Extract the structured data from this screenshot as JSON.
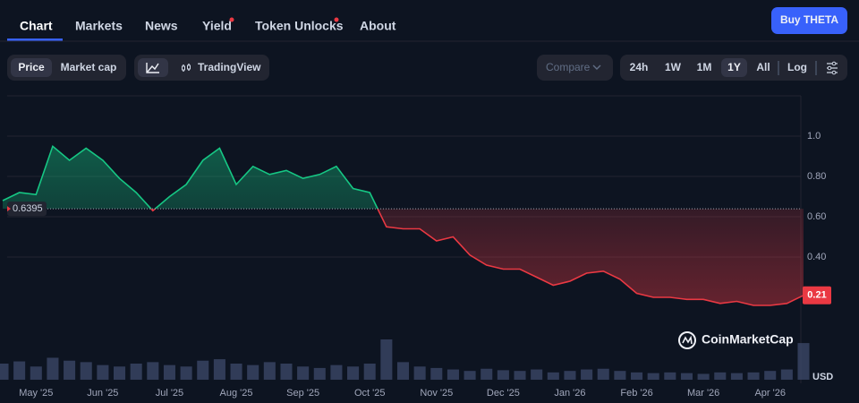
{
  "tabs": [
    "Chart",
    "Markets",
    "News",
    "Yield",
    "Token Unlocks",
    "About"
  ],
  "buy_button": "Buy THETA",
  "price_toggle": [
    "Price",
    "Market cap"
  ],
  "chart_tool": "TradingView",
  "compare": "Compare",
  "ranges": [
    "24h",
    "1W",
    "1M",
    "1Y",
    "All"
  ],
  "log": "Log",
  "watermark": "CoinMarketCap",
  "currency": "USD",
  "chart_data": {
    "type": "line",
    "categories": [
      null,
      null,
      "May '25",
      null,
      null,
      null,
      "Jun '25",
      null,
      null,
      null,
      "Jul '25",
      null,
      null,
      null,
      "Aug '25",
      null,
      null,
      null,
      "Sep '25",
      null,
      null,
      null,
      "Oct '25",
      null,
      null,
      null,
      "Nov '25",
      null,
      null,
      null,
      "Dec '25",
      null,
      null,
      null,
      "Jan '26",
      null,
      null,
      null,
      "Feb '26",
      null,
      null,
      null,
      "Mar '26",
      null,
      null,
      null,
      "Apr '26",
      null,
      null
    ],
    "series": [
      {
        "values": [
          0.68,
          0.72,
          0.71,
          0.95,
          0.88,
          0.94,
          0.88,
          0.79,
          0.72,
          0.63,
          0.7,
          0.76,
          0.88,
          0.94,
          0.76,
          0.85,
          0.81,
          0.83,
          0.79,
          0.81,
          0.85,
          0.74,
          0.72,
          0.55,
          0.54,
          0.54,
          0.48,
          0.5,
          0.41,
          0.36,
          0.34,
          0.34,
          0.3,
          0.26,
          0.28,
          0.32,
          0.33,
          0.29,
          0.22,
          0.2,
          0.2,
          0.19,
          0.19,
          0.17,
          0.18,
          0.16,
          0.16,
          0.17,
          0.21
        ]
      }
    ],
    "volume": [
      22,
      25,
      18,
      30,
      26,
      24,
      20,
      18,
      22,
      24,
      20,
      18,
      26,
      28,
      22,
      20,
      24,
      22,
      18,
      16,
      20,
      18,
      22,
      55,
      24,
      18,
      16,
      14,
      12,
      15,
      13,
      12,
      14,
      10,
      12,
      14,
      15,
      12,
      10,
      9,
      10,
      9,
      8,
      10,
      9,
      10,
      12,
      14,
      50
    ],
    "color_up": "#16c784",
    "color_down": "#ea3943",
    "baseline": 0.6395,
    "ylim": [
      0,
      1.2
    ],
    "yticks": [
      {
        "value": 0.4,
        "label": "0.40"
      },
      {
        "value": 0.6,
        "label": "0.60"
      },
      {
        "value": 0.8,
        "label": "0.80"
      },
      {
        "value": 1,
        "label": "1.0"
      }
    ]
  }
}
